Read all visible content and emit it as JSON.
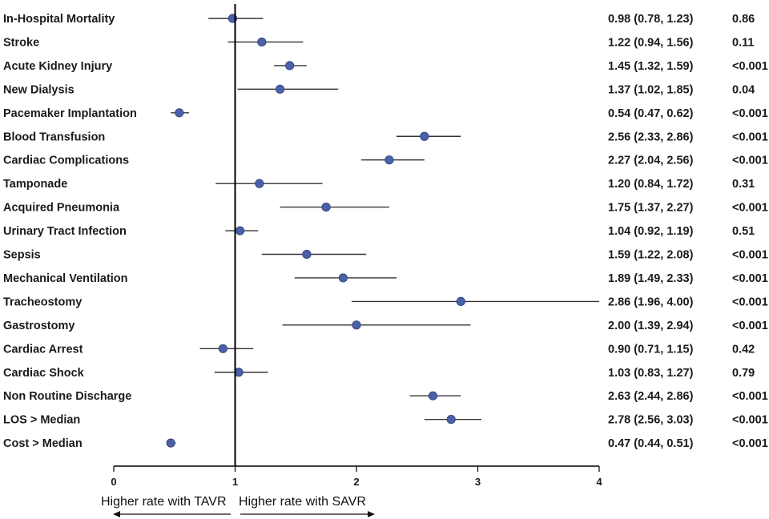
{
  "chart_data": {
    "type": "forest",
    "title": "",
    "xlabel": "",
    "ylabel": "",
    "xlim": [
      0,
      4
    ],
    "reference_line": 1,
    "x_ticks": [
      "0",
      "1",
      "2",
      "3",
      "4"
    ],
    "direction_labels": {
      "left": "Higher rate with TAVR",
      "right": "Higher rate with SAVR"
    },
    "rows": [
      {
        "label": "In-Hospital Mortality",
        "estimate": 0.98,
        "lower": 0.78,
        "upper": 1.23,
        "ci_text": "0.98 (0.78, 1.23)",
        "p": "0.86"
      },
      {
        "label": "Stroke",
        "estimate": 1.22,
        "lower": 0.94,
        "upper": 1.56,
        "ci_text": "1.22 (0.94, 1.56)",
        "p": "0.11"
      },
      {
        "label": "Acute Kidney Injury",
        "estimate": 1.45,
        "lower": 1.32,
        "upper": 1.59,
        "ci_text": "1.45 (1.32, 1.59)",
        "p": "<0.001"
      },
      {
        "label": "New Dialysis",
        "estimate": 1.37,
        "lower": 1.02,
        "upper": 1.85,
        "ci_text": "1.37 (1.02, 1.85)",
        "p": "0.04"
      },
      {
        "label": "Pacemaker Implantation",
        "estimate": 0.54,
        "lower": 0.47,
        "upper": 0.62,
        "ci_text": "0.54 (0.47, 0.62)",
        "p": "<0.001"
      },
      {
        "label": "Blood Transfusion",
        "estimate": 2.56,
        "lower": 2.33,
        "upper": 2.86,
        "ci_text": "2.56 (2.33, 2.86)",
        "p": "<0.001"
      },
      {
        "label": "Cardiac Complications",
        "estimate": 2.27,
        "lower": 2.04,
        "upper": 2.56,
        "ci_text": "2.27 (2.04, 2.56)",
        "p": "<0.001"
      },
      {
        "label": "Tamponade",
        "estimate": 1.2,
        "lower": 0.84,
        "upper": 1.72,
        "ci_text": "1.20 (0.84, 1.72)",
        "p": "0.31"
      },
      {
        "label": "Acquired Pneumonia",
        "estimate": 1.75,
        "lower": 1.37,
        "upper": 2.27,
        "ci_text": "1.75 (1.37, 2.27)",
        "p": "<0.001"
      },
      {
        "label": "Urinary Tract Infection",
        "estimate": 1.04,
        "lower": 0.92,
        "upper": 1.19,
        "ci_text": "1.04 (0.92, 1.19)",
        "p": "0.51"
      },
      {
        "label": "Sepsis",
        "estimate": 1.59,
        "lower": 1.22,
        "upper": 2.08,
        "ci_text": "1.59 (1.22, 2.08)",
        "p": "<0.001"
      },
      {
        "label": "Mechanical Ventilation",
        "estimate": 1.89,
        "lower": 1.49,
        "upper": 2.33,
        "ci_text": "1.89 (1.49, 2.33)",
        "p": "<0.001"
      },
      {
        "label": "Tracheostomy",
        "estimate": 2.86,
        "lower": 1.96,
        "upper": 4.0,
        "ci_text": "2.86 (1.96, 4.00)",
        "p": "<0.001"
      },
      {
        "label": "Gastrostomy",
        "estimate": 2.0,
        "lower": 1.39,
        "upper": 2.94,
        "ci_text": "2.00 (1.39, 2.94)",
        "p": "<0.001"
      },
      {
        "label": "Cardiac Arrest",
        "estimate": 0.9,
        "lower": 0.71,
        "upper": 1.15,
        "ci_text": "0.90 (0.71, 1.15)",
        "p": "0.42"
      },
      {
        "label": "Cardiac Shock",
        "estimate": 1.03,
        "lower": 0.83,
        "upper": 1.27,
        "ci_text": "1.03 (0.83, 1.27)",
        "p": "0.79"
      },
      {
        "label": "Non Routine Discharge",
        "estimate": 2.63,
        "lower": 2.44,
        "upper": 2.86,
        "ci_text": "2.63 (2.44, 2.86)",
        "p": "<0.001"
      },
      {
        "label": "LOS > Median",
        "estimate": 2.78,
        "lower": 2.56,
        "upper": 3.03,
        "ci_text": "2.78 (2.56, 3.03)",
        "p": "<0.001"
      },
      {
        "label": "Cost > Median",
        "estimate": 0.47,
        "lower": 0.44,
        "upper": 0.51,
        "ci_text": "0.47 (0.44, 0.51)",
        "p": "<0.001"
      }
    ],
    "colors": {
      "marker": "#4a61a8",
      "marker_stroke": "#2e3f7a",
      "line": "#333333",
      "axis": "#000000"
    }
  }
}
